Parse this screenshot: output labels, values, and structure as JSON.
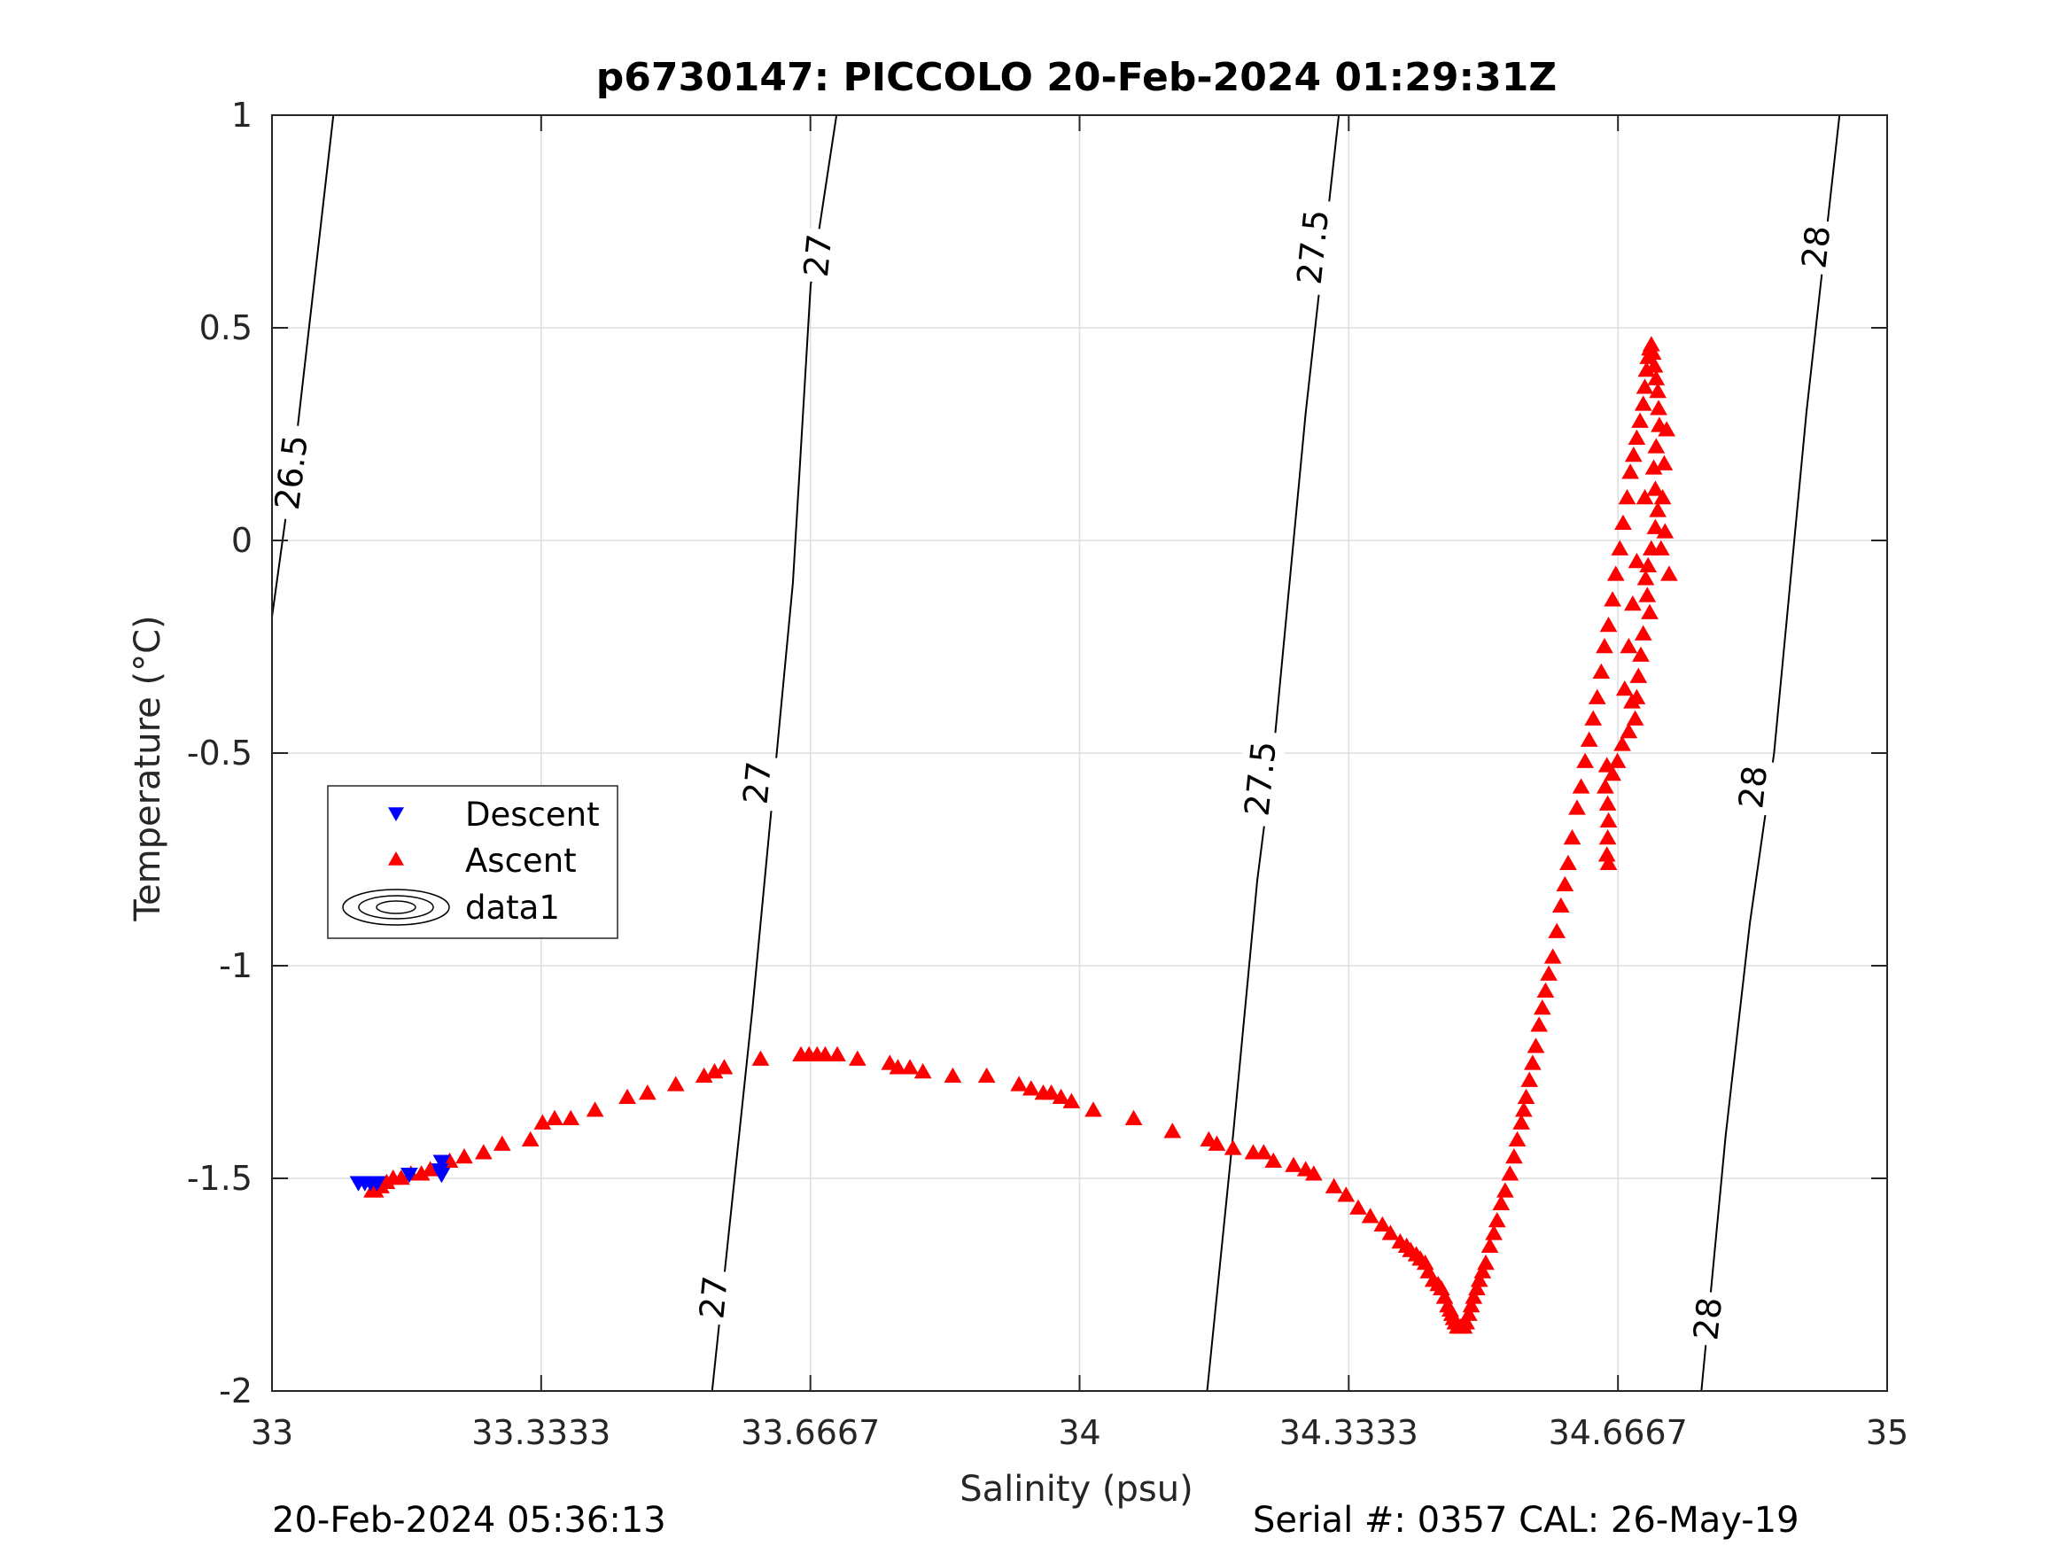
{
  "chart_data": {
    "type": "scatter",
    "title": "p6730147: PICCOLO 20-Feb-2024 01:29:31Z",
    "xlabel": "Salinity (psu)",
    "ylabel": "Temperature (°C)",
    "xlim": [
      33,
      35
    ],
    "ylim": [
      -2,
      1
    ],
    "x_ticks": [
      "33",
      "33.3333",
      "33.6667",
      "34",
      "34.3333",
      "34.6667",
      "35"
    ],
    "y_ticks": [
      "1",
      "0.5",
      "0",
      "-0.5",
      "-1",
      "-1.5",
      "-2"
    ],
    "grid": true,
    "legend": {
      "placement": "middle-left",
      "entries": [
        "Descent",
        "Ascent",
        "data1"
      ]
    },
    "footer_left": "20-Feb-2024 05:36:13",
    "footer_right": "Serial #: 0357  CAL: 26-May-19",
    "colors": {
      "descent": "#0000ff",
      "ascent": "#ff0000",
      "contour": "#000000",
      "grid": "#dddddd"
    },
    "contours": [
      {
        "label": "26.5",
        "points": [
          [
            33.0,
            -0.18
          ],
          [
            33.029,
            0.22
          ],
          [
            33.076,
            1.0
          ]
        ],
        "label_positions": [
          [
            33.024,
            0.16
          ]
        ]
      },
      {
        "label": "27",
        "points": [
          [
            33.545,
            -2.0
          ],
          [
            33.57,
            -1.55
          ],
          [
            33.595,
            -1.1
          ],
          [
            33.62,
            -0.6
          ],
          [
            33.645,
            -0.1
          ],
          [
            33.667,
            0.6
          ],
          [
            33.699,
            1.0
          ]
        ],
        "label_positions": [
          [
            33.547,
            -1.78
          ],
          [
            33.601,
            -0.57
          ],
          [
            33.676,
            0.67
          ]
        ]
      },
      {
        "label": "27.5",
        "points": [
          [
            34.158,
            -2.0
          ],
          [
            34.19,
            -1.4
          ],
          [
            34.22,
            -0.8
          ],
          [
            34.24,
            -0.5
          ],
          [
            34.28,
            0.3
          ],
          [
            34.321,
            1.0
          ]
        ],
        "label_positions": [
          [
            34.224,
            -0.56
          ],
          [
            34.289,
            0.69
          ]
        ]
      },
      {
        "label": "28",
        "points": [
          [
            34.77,
            -2.0
          ],
          [
            34.8,
            -1.4
          ],
          [
            34.83,
            -0.9
          ],
          [
            34.86,
            -0.5
          ],
          [
            34.9,
            0.3
          ],
          [
            34.941,
            1.0
          ]
        ],
        "label_positions": [
          [
            34.778,
            -1.83
          ],
          [
            34.834,
            -0.58
          ],
          [
            34.912,
            0.69
          ]
        ]
      }
    ],
    "series": [
      {
        "name": "Descent",
        "marker": "triangle-down",
        "points": [
          [
            33.107,
            -1.51
          ],
          [
            33.115,
            -1.51
          ],
          [
            33.122,
            -1.51
          ],
          [
            33.13,
            -1.51
          ],
          [
            33.17,
            -1.49
          ],
          [
            33.21,
            -1.49
          ],
          [
            33.208,
            -1.48
          ],
          [
            33.21,
            -1.46
          ]
        ]
      },
      {
        "name": "Ascent",
        "marker": "triangle-up",
        "points": [
          [
            33.124,
            -1.53
          ],
          [
            33.128,
            -1.53
          ],
          [
            33.135,
            -1.52
          ],
          [
            33.142,
            -1.51
          ],
          [
            33.15,
            -1.5
          ],
          [
            33.16,
            -1.5
          ],
          [
            33.172,
            -1.49
          ],
          [
            33.185,
            -1.49
          ],
          [
            33.196,
            -1.48
          ],
          [
            33.22,
            -1.46
          ],
          [
            33.238,
            -1.45
          ],
          [
            33.262,
            -1.44
          ],
          [
            33.285,
            -1.42
          ],
          [
            33.32,
            -1.41
          ],
          [
            33.335,
            -1.37
          ],
          [
            33.35,
            -1.36
          ],
          [
            33.37,
            -1.36
          ],
          [
            33.4,
            -1.34
          ],
          [
            33.44,
            -1.31
          ],
          [
            33.465,
            -1.3
          ],
          [
            33.5,
            -1.28
          ],
          [
            33.535,
            -1.26
          ],
          [
            33.548,
            -1.25
          ],
          [
            33.56,
            -1.24
          ],
          [
            33.605,
            -1.22
          ],
          [
            33.655,
            -1.21
          ],
          [
            33.665,
            -1.21
          ],
          [
            33.675,
            -1.21
          ],
          [
            33.685,
            -1.21
          ],
          [
            33.7,
            -1.21
          ],
          [
            33.725,
            -1.22
          ],
          [
            33.765,
            -1.23
          ],
          [
            33.775,
            -1.24
          ],
          [
            33.79,
            -1.24
          ],
          [
            33.806,
            -1.25
          ],
          [
            33.843,
            -1.26
          ],
          [
            33.885,
            -1.26
          ],
          [
            33.925,
            -1.28
          ],
          [
            33.94,
            -1.29
          ],
          [
            33.955,
            -1.3
          ],
          [
            33.965,
            -1.3
          ],
          [
            33.977,
            -1.31
          ],
          [
            33.99,
            -1.32
          ],
          [
            34.017,
            -1.34
          ],
          [
            34.067,
            -1.36
          ],
          [
            34.115,
            -1.39
          ],
          [
            34.16,
            -1.41
          ],
          [
            34.17,
            -1.42
          ],
          [
            34.19,
            -1.43
          ],
          [
            34.215,
            -1.44
          ],
          [
            34.228,
            -1.44
          ],
          [
            34.24,
            -1.46
          ],
          [
            34.265,
            -1.47
          ],
          [
            34.28,
            -1.48
          ],
          [
            34.29,
            -1.49
          ],
          [
            34.315,
            -1.52
          ],
          [
            34.33,
            -1.54
          ],
          [
            34.345,
            -1.57
          ],
          [
            34.36,
            -1.59
          ],
          [
            34.375,
            -1.61
          ],
          [
            34.385,
            -1.63
          ],
          [
            34.397,
            -1.65
          ],
          [
            34.405,
            -1.66
          ],
          [
            34.41,
            -1.67
          ],
          [
            34.417,
            -1.68
          ],
          [
            34.422,
            -1.69
          ],
          [
            34.428,
            -1.7
          ],
          [
            34.432,
            -1.72
          ],
          [
            34.438,
            -1.74
          ],
          [
            34.444,
            -1.75
          ],
          [
            34.448,
            -1.76
          ],
          [
            34.452,
            -1.78
          ],
          [
            34.456,
            -1.8
          ],
          [
            34.459,
            -1.81
          ],
          [
            34.461,
            -1.82
          ],
          [
            34.463,
            -1.83
          ],
          [
            34.465,
            -1.84
          ],
          [
            34.468,
            -1.85
          ],
          [
            34.472,
            -1.85
          ],
          [
            34.476,
            -1.85
          ],
          [
            34.479,
            -1.84
          ],
          [
            34.482,
            -1.82
          ],
          [
            34.485,
            -1.8
          ],
          [
            34.488,
            -1.78
          ],
          [
            34.492,
            -1.76
          ],
          [
            34.495,
            -1.74
          ],
          [
            34.499,
            -1.72
          ],
          [
            34.503,
            -1.7
          ],
          [
            34.508,
            -1.66
          ],
          [
            34.513,
            -1.63
          ],
          [
            34.517,
            -1.6
          ],
          [
            34.522,
            -1.56
          ],
          [
            34.527,
            -1.53
          ],
          [
            34.533,
            -1.49
          ],
          [
            34.538,
            -1.45
          ],
          [
            34.542,
            -1.41
          ],
          [
            34.547,
            -1.37
          ],
          [
            34.55,
            -1.34
          ],
          [
            34.553,
            -1.31
          ],
          [
            34.557,
            -1.27
          ],
          [
            34.561,
            -1.23
          ],
          [
            34.565,
            -1.19
          ],
          [
            34.569,
            -1.14
          ],
          [
            34.573,
            -1.1
          ],
          [
            34.577,
            -1.06
          ],
          [
            34.581,
            -1.02
          ],
          [
            34.586,
            -0.98
          ],
          [
            34.591,
            -0.92
          ],
          [
            34.596,
            -0.86
          ],
          [
            34.601,
            -0.81
          ],
          [
            34.605,
            -0.76
          ],
          [
            34.61,
            -0.7
          ],
          [
            34.616,
            -0.63
          ],
          [
            34.621,
            -0.58
          ],
          [
            34.626,
            -0.52
          ],
          [
            34.631,
            -0.47
          ],
          [
            34.636,
            -0.42
          ],
          [
            34.641,
            -0.37
          ],
          [
            34.646,
            -0.31
          ],
          [
            34.65,
            -0.25
          ],
          [
            34.655,
            -0.2
          ],
          [
            34.66,
            -0.14
          ],
          [
            34.664,
            -0.08
          ],
          [
            34.669,
            -0.02
          ],
          [
            34.673,
            0.04
          ],
          [
            34.678,
            0.1
          ],
          [
            34.682,
            0.16
          ],
          [
            34.686,
            0.2
          ],
          [
            34.69,
            0.24
          ],
          [
            34.694,
            0.28
          ],
          [
            34.698,
            0.32
          ],
          [
            34.7,
            0.36
          ],
          [
            34.702,
            0.4
          ],
          [
            34.704,
            0.43
          ],
          [
            34.706,
            0.45
          ],
          [
            34.708,
            0.46
          ],
          [
            34.71,
            0.44
          ],
          [
            34.712,
            0.41
          ],
          [
            34.714,
            0.38
          ],
          [
            34.716,
            0.35
          ],
          [
            34.717,
            0.31
          ],
          [
            34.718,
            0.27
          ],
          [
            34.714,
            0.22
          ],
          [
            34.711,
            0.17
          ],
          [
            34.713,
            0.12
          ],
          [
            34.716,
            0.07
          ],
          [
            34.713,
            0.03
          ],
          [
            34.708,
            -0.02
          ],
          [
            34.704,
            -0.06
          ],
          [
            34.701,
            -0.09
          ],
          [
            34.703,
            -0.13
          ],
          [
            34.706,
            -0.17
          ],
          [
            34.698,
            -0.22
          ],
          [
            34.695,
            -0.27
          ],
          [
            34.692,
            -0.32
          ],
          [
            34.69,
            -0.37
          ],
          [
            34.688,
            -0.42
          ],
          [
            34.68,
            -0.45
          ],
          [
            34.672,
            -0.48
          ],
          [
            34.666,
            -0.52
          ],
          [
            34.66,
            -0.55
          ],
          [
            34.653,
            -0.53
          ],
          [
            34.651,
            -0.58
          ],
          [
            34.654,
            -0.62
          ],
          [
            34.655,
            -0.66
          ],
          [
            34.654,
            -0.7
          ],
          [
            34.653,
            -0.74
          ],
          [
            34.655,
            -0.76
          ],
          [
            34.727,
            0.26
          ],
          [
            34.724,
            0.18
          ],
          [
            34.722,
            0.1
          ],
          [
            34.725,
            0.02
          ],
          [
            34.73,
            -0.08
          ],
          [
            34.72,
            -0.02
          ],
          [
            34.7,
            0.1
          ],
          [
            34.69,
            -0.05
          ],
          [
            34.685,
            -0.15
          ],
          [
            34.68,
            -0.25
          ],
          [
            34.675,
            -0.35
          ],
          [
            34.684,
            -0.38
          ]
        ]
      }
    ]
  }
}
